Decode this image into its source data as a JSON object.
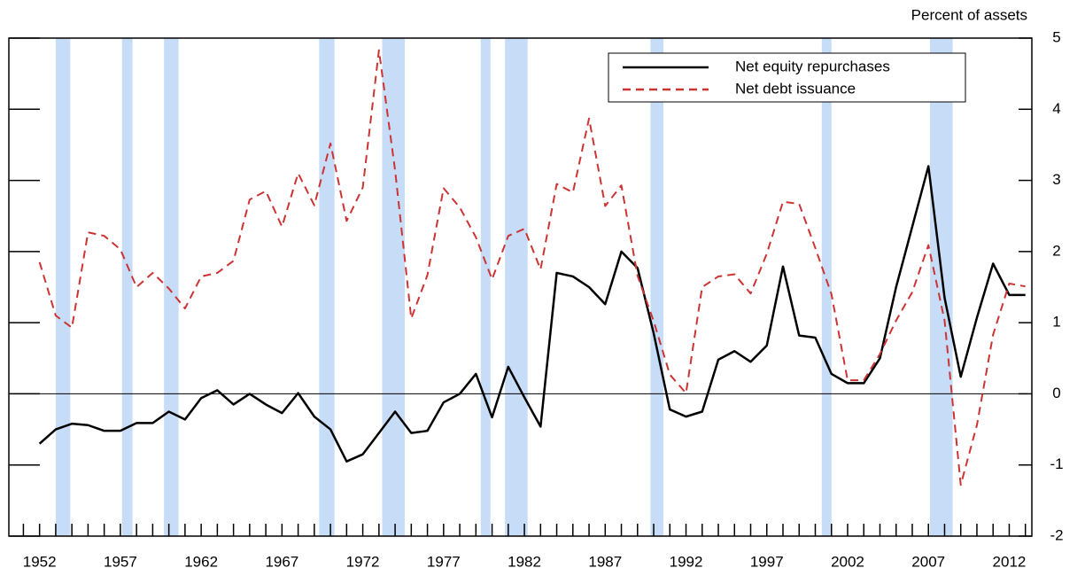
{
  "chart_data": {
    "type": "line",
    "y_axis_label": "Percent of assets",
    "x": [
      1952,
      1953,
      1954,
      1955,
      1956,
      1957,
      1958,
      1959,
      1960,
      1961,
      1962,
      1963,
      1964,
      1965,
      1966,
      1967,
      1968,
      1969,
      1970,
      1971,
      1972,
      1973,
      1974,
      1975,
      1976,
      1977,
      1978,
      1979,
      1980,
      1981,
      1982,
      1983,
      1984,
      1985,
      1986,
      1987,
      1988,
      1989,
      1990,
      1991,
      1992,
      1993,
      1994,
      1995,
      1996,
      1997,
      1998,
      1999,
      2000,
      2001,
      2002,
      2003,
      2004,
      2005,
      2006,
      2007,
      2008,
      2009,
      2010,
      2011,
      2012,
      2013
    ],
    "series": [
      {
        "name": "Net equity repurchases",
        "color": "#000000",
        "dash": false,
        "values": [
          -0.7,
          -0.5,
          -0.42,
          -0.44,
          -0.52,
          -0.52,
          -0.41,
          -0.41,
          -0.25,
          -0.36,
          -0.06,
          0.05,
          -0.15,
          0,
          -0.15,
          -0.27,
          0.01,
          -0.32,
          -0.5,
          -0.95,
          -0.85,
          -0.55,
          -0.25,
          -0.55,
          -0.52,
          -0.12,
          0,
          0.28,
          -0.33,
          0.38,
          -0.05,
          -0.46,
          1.7,
          1.65,
          1.5,
          1.26,
          2,
          1.77,
          0.85,
          -0.22,
          -0.32,
          -0.25,
          0.48,
          0.6,
          0.45,
          0.68,
          1.79,
          0.82,
          0.79,
          0.28,
          0.15,
          0.15,
          0.5,
          1.5,
          2.35,
          3.2,
          1.35,
          0.24,
          1.07,
          1.83,
          1.39,
          1.39
        ]
      },
      {
        "name": "Net debt issuance",
        "color": "#cc3333",
        "dash": true,
        "values": [
          1.85,
          1.1,
          0.93,
          2.27,
          2.22,
          2.03,
          1.5,
          1.7,
          1.48,
          1.2,
          1.65,
          1.7,
          1.87,
          2.73,
          2.85,
          2.35,
          3.1,
          2.65,
          3.52,
          2.43,
          2.9,
          4.83,
          3.14,
          1.06,
          1.67,
          2.89,
          2.62,
          2.2,
          1.61,
          2.22,
          2.32,
          1.75,
          2.95,
          2.83,
          3.87,
          2.64,
          2.93,
          1.66,
          1.02,
          0.27,
          0.01,
          1.5,
          1.65,
          1.68,
          1.41,
          1.97,
          2.7,
          2.67,
          2.05,
          1.4,
          0.19,
          0.19,
          0.56,
          1.03,
          1.43,
          2.09,
          1.03,
          -1.28,
          -0.44,
          0.83,
          1.55,
          1.51
        ]
      }
    ],
    "recessions": [
      [
        1953.0,
        1953.9
      ],
      [
        1957.1,
        1957.75
      ],
      [
        1959.7,
        1960.6
      ],
      [
        1969.3,
        1970.25
      ],
      [
        1973.2,
        1974.6
      ],
      [
        1979.3,
        1979.9
      ],
      [
        1980.8,
        1982.2
      ],
      [
        1989.8,
        1990.6
      ],
      [
        2000.4,
        2001.0
      ],
      [
        2007.1,
        2008.5
      ]
    ],
    "recession_color": "#c6dcf7",
    "xlim": [
      1950.1,
      2013.4
    ],
    "xticks": [
      1952,
      1957,
      1962,
      1967,
      1972,
      1977,
      1982,
      1987,
      1992,
      1997,
      2002,
      2007,
      2012
    ],
    "xminorticks": [
      1951,
      1952,
      1953,
      1954,
      1955,
      1956,
      1957,
      1958,
      1959,
      1960,
      1961,
      1962,
      1963,
      1964,
      1965,
      1966,
      1967,
      1968,
      1969,
      1970,
      1971,
      1972,
      1973,
      1974,
      1975,
      1976,
      1977,
      1978,
      1979,
      1980,
      1981,
      1982,
      1983,
      1984,
      1985,
      1986,
      1987,
      1988,
      1989,
      1990,
      1991,
      1992,
      1993,
      1994,
      1995,
      1996,
      1997,
      1998,
      1999,
      2000,
      2001,
      2002,
      2003,
      2004,
      2005,
      2006,
      2007,
      2008,
      2009,
      2010,
      2011,
      2012,
      2013
    ],
    "ylim": [
      -2,
      5
    ],
    "yticks": [
      -2,
      -1,
      0,
      1,
      2,
      3,
      4,
      5
    ],
    "zero_line": 0
  }
}
